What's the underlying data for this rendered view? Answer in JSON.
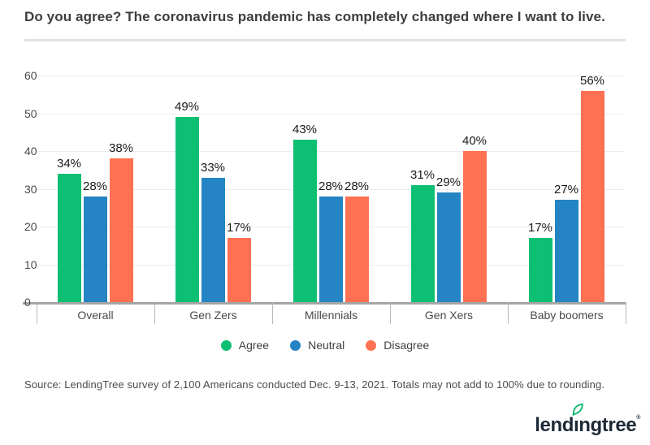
{
  "title": "Do you agree? The coronavirus pandemic has completely changed where I want to live.",
  "chart_data": {
    "type": "bar",
    "categories": [
      "Overall",
      "Gen Zers",
      "Millennials",
      "Gen Xers",
      "Baby boomers"
    ],
    "series": [
      {
        "name": "Agree",
        "color": "#0dbf73",
        "values": [
          34,
          49,
          43,
          31,
          17
        ]
      },
      {
        "name": "Neutral",
        "color": "#2484c4",
        "values": [
          28,
          33,
          28,
          29,
          27
        ]
      },
      {
        "name": "Disagree",
        "color": "#ff7152",
        "values": [
          38,
          17,
          28,
          40,
          56
        ]
      }
    ],
    "value_suffix": "%",
    "ylim": [
      0,
      60
    ],
    "yticks": [
      0,
      10,
      20,
      30,
      40,
      50,
      60
    ],
    "grid": true,
    "legend_position": "bottom",
    "xlabel": "",
    "ylabel": ""
  },
  "source_note": "Source: LendingTree survey of 2,100 Americans conducted Dec. 9-13, 2021. Totals may not add to 100% due to rounding.",
  "logo": {
    "part1": "lend",
    "dotless_i": "ı",
    "part2": "ngtree",
    "mark": "®",
    "leaf_color": "#00b36b",
    "text_color": "#1d2936"
  }
}
